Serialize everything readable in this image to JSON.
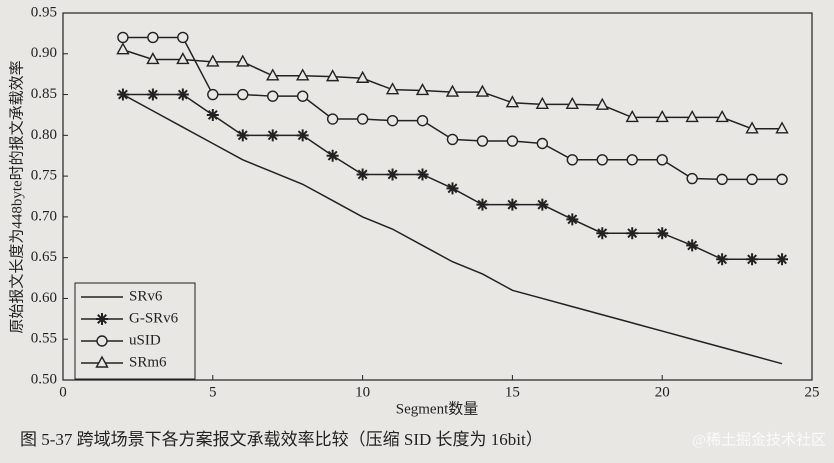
{
  "chart_data": {
    "type": "line",
    "x_label": "Segment数量",
    "y_label": "原始报文长度为448byte时的报文承载效率",
    "caption": "图 5-37   跨域场景下各方案报文承载效率比较（压缩 SID 长度为 16bit）",
    "watermark": "@稀土掘金技术社区",
    "x": [
      2,
      3,
      4,
      5,
      6,
      7,
      8,
      9,
      10,
      11,
      12,
      13,
      14,
      15,
      16,
      17,
      18,
      19,
      20,
      21,
      22,
      23,
      24
    ],
    "series": [
      {
        "name": "SRv6",
        "color": "#222222",
        "marker": "none",
        "values": [
          0.85,
          0.83,
          0.81,
          0.79,
          0.77,
          0.755,
          0.74,
          0.72,
          0.7,
          0.685,
          0.665,
          0.645,
          0.63,
          0.61,
          0.6,
          0.59,
          0.58,
          0.57,
          0.56,
          0.55,
          0.54,
          0.53,
          0.52
        ]
      },
      {
        "name": "G-SRv6",
        "color": "#222222",
        "marker": "star",
        "values": [
          0.85,
          0.85,
          0.85,
          0.825,
          0.8,
          0.8,
          0.8,
          0.775,
          0.752,
          0.752,
          0.752,
          0.735,
          0.715,
          0.715,
          0.715,
          0.697,
          0.68,
          0.68,
          0.68,
          0.665,
          0.648,
          0.648,
          0.648
        ]
      },
      {
        "name": "uSID",
        "color": "#222222",
        "marker": "circle",
        "values": [
          0.92,
          0.92,
          0.92,
          0.85,
          0.85,
          0.848,
          0.848,
          0.82,
          0.82,
          0.818,
          0.818,
          0.795,
          0.793,
          0.793,
          0.79,
          0.77,
          0.77,
          0.77,
          0.77,
          0.747,
          0.746,
          0.746,
          0.746
        ]
      },
      {
        "name": "SRm6",
        "color": "#222222",
        "marker": "triangle",
        "values": [
          0.905,
          0.893,
          0.893,
          0.89,
          0.89,
          0.873,
          0.873,
          0.872,
          0.87,
          0.856,
          0.855,
          0.853,
          0.853,
          0.84,
          0.838,
          0.838,
          0.837,
          0.822,
          0.822,
          0.822,
          0.822,
          0.808,
          0.808
        ]
      }
    ],
    "xlim": [
      0,
      25
    ],
    "xticks": [
      0,
      5,
      10,
      15,
      20,
      25
    ],
    "ylim": [
      0.5,
      0.95
    ],
    "yticks": [
      {
        "value": 0.5,
        "label": "0.50"
      },
      0.55,
      {
        "value": 0.6,
        "label": "0.60"
      },
      0.65,
      {
        "value": 0.7,
        "label": "0.70"
      },
      0.75,
      {
        "value": 0.8,
        "label": "0.80"
      },
      0.85,
      {
        "value": 0.9,
        "label": "0.90"
      },
      0.95
    ],
    "grid": false,
    "legend": "lower left"
  }
}
